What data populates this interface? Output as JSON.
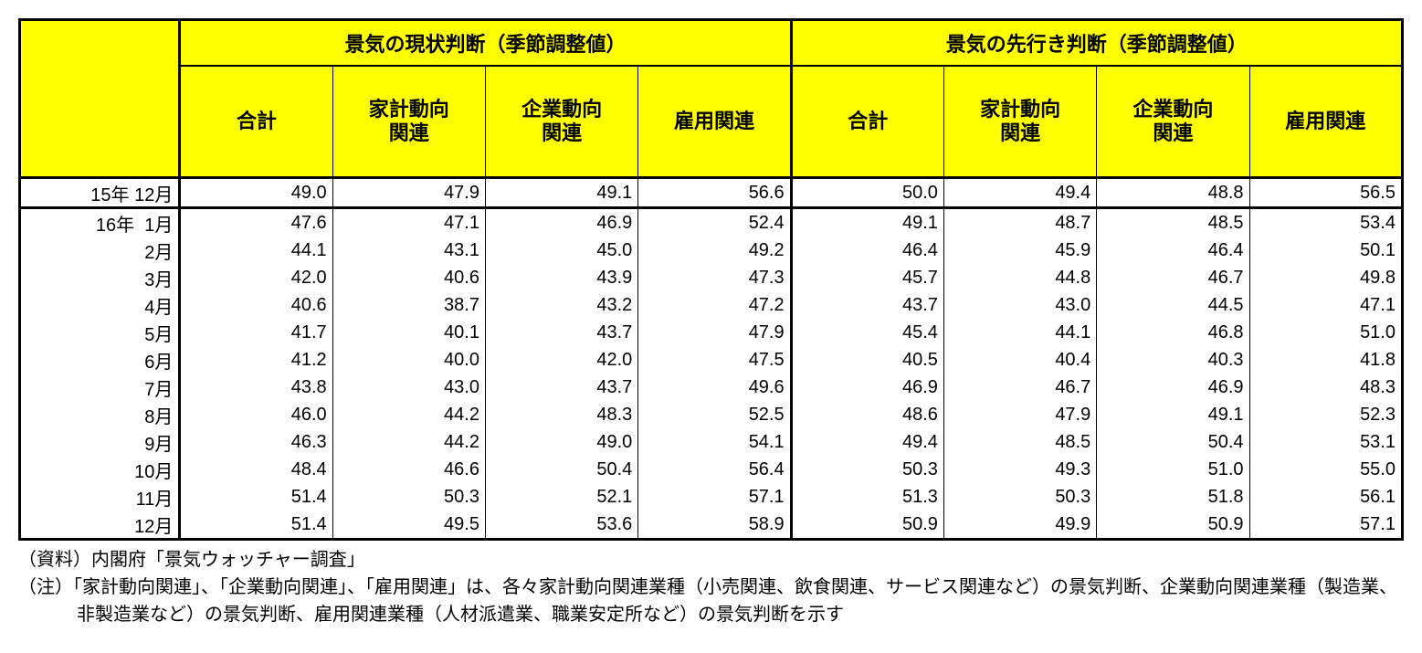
{
  "colors": {
    "header_bg": "#ffff00",
    "border": "#000000",
    "background": "#ffffff",
    "text": "#000000"
  },
  "header": {
    "group1": "景気の現状判断（季節調整値）",
    "group2": "景気の先行き判断（季節調整値）",
    "sub": {
      "total": "合計",
      "household": "家計動向\n関連",
      "corporate": "企業動向\n関連",
      "employment": "雇用関連"
    }
  },
  "periods": [
    "15年 12月",
    "16年  1月",
    "2月",
    "3月",
    "4月",
    "5月",
    "6月",
    "7月",
    "8月",
    "9月",
    "10月",
    "11月",
    "12月"
  ],
  "rows": [
    [
      "49.0",
      "47.9",
      "49.1",
      "56.6",
      "50.0",
      "49.4",
      "48.8",
      "56.5"
    ],
    [
      "47.6",
      "47.1",
      "46.9",
      "52.4",
      "49.1",
      "48.7",
      "48.5",
      "53.4"
    ],
    [
      "44.1",
      "43.1",
      "45.0",
      "49.2",
      "46.4",
      "45.9",
      "46.4",
      "50.1"
    ],
    [
      "42.0",
      "40.6",
      "43.9",
      "47.3",
      "45.7",
      "44.8",
      "46.7",
      "49.8"
    ],
    [
      "40.6",
      "38.7",
      "43.2",
      "47.2",
      "43.7",
      "43.0",
      "44.5",
      "47.1"
    ],
    [
      "41.7",
      "40.1",
      "43.7",
      "47.9",
      "45.4",
      "44.1",
      "46.8",
      "51.0"
    ],
    [
      "41.2",
      "40.0",
      "42.0",
      "47.5",
      "40.5",
      "40.4",
      "40.3",
      "41.8"
    ],
    [
      "43.8",
      "43.0",
      "43.7",
      "49.6",
      "46.9",
      "46.7",
      "46.9",
      "48.3"
    ],
    [
      "46.0",
      "44.2",
      "48.3",
      "52.5",
      "48.6",
      "47.9",
      "49.1",
      "52.3"
    ],
    [
      "46.3",
      "44.2",
      "49.0",
      "54.1",
      "49.4",
      "48.5",
      "50.4",
      "53.1"
    ],
    [
      "48.4",
      "46.6",
      "50.4",
      "56.4",
      "50.3",
      "49.3",
      "51.0",
      "55.0"
    ],
    [
      "51.4",
      "50.3",
      "52.1",
      "57.1",
      "51.3",
      "50.3",
      "51.8",
      "56.1"
    ],
    [
      "51.4",
      "49.5",
      "53.6",
      "58.9",
      "50.9",
      "49.9",
      "50.9",
      "57.1"
    ]
  ],
  "footnotes": {
    "source": "（資料）内閣府「景気ウォッチャー調査」",
    "note": "（注）「家計動向関連」、「企業動向関連」、「雇用関連」は、各々家計動向関連業種（小売関連、飲食関連、サービス関連など）の景気判断、企業動向関連業種（製造業、非製造業など）の景気判断、雇用関連業種（人材派遣業、職業安定所など）の景気判断を示す"
  },
  "col_widths": {
    "period": 175,
    "data": 167
  }
}
